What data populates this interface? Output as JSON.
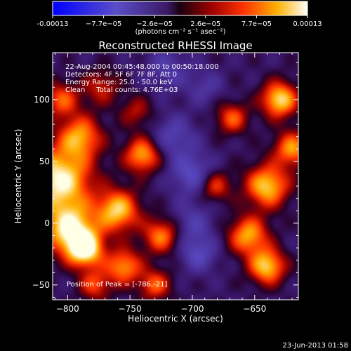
{
  "chart_data": {
    "type": "heatmap",
    "title": "Reconstructed RHESSI Image",
    "xlabel": "Heliocentric X (arcsec)",
    "ylabel": "Heliocentric Y (arcsec)",
    "xlim": [
      -812,
      -615
    ],
    "ylim": [
      -62,
      138
    ],
    "xticks": [
      -800,
      -750,
      -700,
      -650
    ],
    "yticks": [
      -50,
      0,
      50,
      100
    ],
    "colorbar": {
      "min": -0.00013,
      "max": 0.00013,
      "ticks": [
        "-0.00013",
        "−7.7e−05",
        "−2.6e−05",
        "2.6e−05",
        "7.7e−05",
        "0.00013"
      ],
      "label": "(photons cm⁻² s⁻¹ asec⁻²)"
    },
    "annotations": [
      "22-Aug-2004 00:45:48.000 to 00:50:18.000",
      "Detectors: 4F 5F 6F 7F 8F, Att 0",
      "Energy Range: 25.0 - 50.0 keV",
      "Clean     Total counts: 4.76E+03"
    ],
    "peak_label": "Position of Peak = [-786,-21]",
    "peak_position": [
      -786,
      -21
    ],
    "sources": [
      {
        "x": -807,
        "y": 35,
        "v": 1.0,
        "s": 18
      },
      {
        "x": -798,
        "y": -5,
        "v": 0.95,
        "s": 14
      },
      {
        "x": -786,
        "y": -21,
        "v": 1.0,
        "s": 10
      },
      {
        "x": -790,
        "y": 70,
        "v": 0.7,
        "s": 12
      },
      {
        "x": -805,
        "y": 100,
        "v": 0.55,
        "s": 10
      },
      {
        "x": -760,
        "y": 10,
        "v": 0.85,
        "s": 12
      },
      {
        "x": -755,
        "y": -35,
        "v": 0.7,
        "s": 10
      },
      {
        "x": -740,
        "y": 55,
        "v": 0.75,
        "s": 10
      },
      {
        "x": -725,
        "y": -10,
        "v": 0.65,
        "s": 10
      },
      {
        "x": -730,
        "y": -50,
        "v": 0.55,
        "s": 9
      },
      {
        "x": -778,
        "y": -50,
        "v": 0.5,
        "s": 9
      },
      {
        "x": -773,
        "y": 110,
        "v": 0.4,
        "s": 10
      },
      {
        "x": -745,
        "y": 90,
        "v": 0.35,
        "s": 9
      },
      {
        "x": -640,
        "y": 30,
        "v": 0.85,
        "s": 12
      },
      {
        "x": -630,
        "y": 100,
        "v": 0.9,
        "s": 10
      },
      {
        "x": -620,
        "y": 60,
        "v": 0.7,
        "s": 10
      },
      {
        "x": -655,
        "y": -10,
        "v": 0.75,
        "s": 11
      },
      {
        "x": -640,
        "y": -35,
        "v": 0.85,
        "s": 10
      },
      {
        "x": -668,
        "y": 85,
        "v": 0.55,
        "s": 9
      },
      {
        "x": -682,
        "y": 30,
        "v": 0.5,
        "s": 9
      },
      {
        "x": -700,
        "y": 40,
        "v": -0.45,
        "s": 12
      },
      {
        "x": -715,
        "y": 70,
        "v": -0.35,
        "s": 12
      },
      {
        "x": -695,
        "y": -25,
        "v": -0.4,
        "s": 10
      },
      {
        "x": -720,
        "y": 125,
        "v": -0.3,
        "s": 12
      },
      {
        "x": -690,
        "y": 110,
        "v": -0.25,
        "s": 10
      },
      {
        "x": -700,
        "y": 0,
        "v": -0.3,
        "s": 12
      }
    ]
  },
  "footer": {
    "date": "23-Jun-2013 01:58"
  }
}
